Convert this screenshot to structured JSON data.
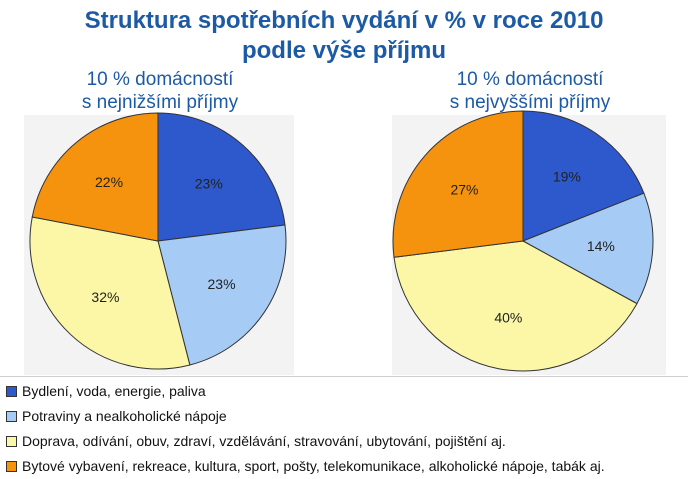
{
  "title_line1": "Struktura spotřebních vydání v % v roce 2010",
  "title_line2": "podle výše příjmu",
  "colors": {
    "bydleni": "#2e59cc",
    "potraviny": "#a6cbf5",
    "doprava": "#fbf7a6",
    "bytove": "#f5920e",
    "title": "#1d5aa6"
  },
  "chart_data": [
    {
      "type": "pie",
      "title_line1": "10 % domácností",
      "title_line2": "s nejnižšími příjmy",
      "categories": [
        "Bydlení, voda, energie, paliva",
        "Potraviny a nealkoholické nápoje",
        "Doprava, odívání, obuv, zdraví, vzdělávání, stravování, ubytování, pojištění aj.",
        "Bytové vybavení, rekreace, kultura, sport, pošty, telekomunikace, alkoholické nápoje, tabák aj."
      ],
      "values": [
        23,
        23,
        32,
        22
      ],
      "labels": [
        "23%",
        "23%",
        "32%",
        "22%"
      ]
    },
    {
      "type": "pie",
      "title_line1": "10 % domácností",
      "title_line2": "s nejvyššími příjmy",
      "categories": [
        "Bydlení, voda, energie, paliva",
        "Potraviny a nealkoholické nápoje",
        "Doprava, odívání, obuv, zdraví, vzdělávání, stravování, ubytování, pojištění aj.",
        "Bytové vybavení, rekreace, kultura, sport, pošty, telekomunikace, alkoholické nápoje, tabák aj."
      ],
      "values": [
        19,
        14,
        40,
        27
      ],
      "labels": [
        "19%",
        "14%",
        "40%",
        "27%"
      ]
    }
  ],
  "legend": [
    {
      "label": "Bydlení, voda, energie, paliva",
      "color": "#2e59cc"
    },
    {
      "label": "Potraviny a nealkoholické nápoje",
      "color": "#a6cbf5"
    },
    {
      "label": "Doprava, odívání, obuv, zdraví, vzdělávání, stravování, ubytování, pojištění aj.",
      "color": "#fbf7a6"
    },
    {
      "label": "Bytové vybavení, rekreace, kultura, sport, pošty, telekomunikace, alkoholické nápoje, tabák aj.",
      "color": "#f5920e"
    }
  ]
}
